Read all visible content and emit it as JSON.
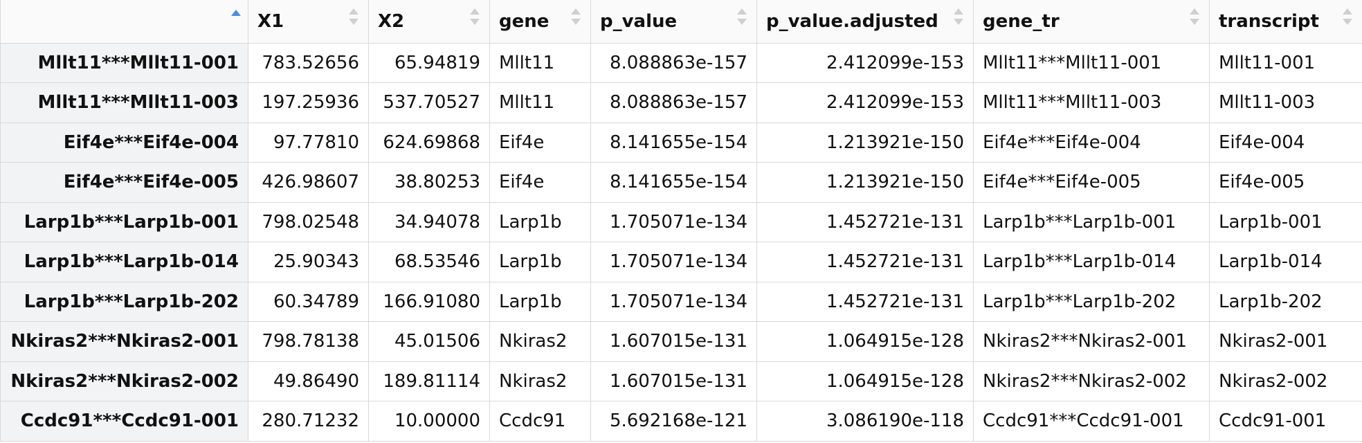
{
  "table": {
    "columns": [
      {
        "label": "",
        "sort": "ascending"
      },
      {
        "label": "X1"
      },
      {
        "label": "X2"
      },
      {
        "label": "gene"
      },
      {
        "label": "p_value"
      },
      {
        "label": "p_value.adjusted"
      },
      {
        "label": "gene_tr"
      },
      {
        "label": "transcript"
      }
    ],
    "rows": [
      {
        "name": "Mllt11***Mllt11-001",
        "x1": "783.52656",
        "x2": "65.94819",
        "gene": "Mllt11",
        "p_value": "8.088863e-157",
        "p_adj": "2.412099e-153",
        "gene_tr": "Mllt11***Mllt11-001",
        "transcript": "Mllt11-001"
      },
      {
        "name": "Mllt11***Mllt11-003",
        "x1": "197.25936",
        "x2": "537.70527",
        "gene": "Mllt11",
        "p_value": "8.088863e-157",
        "p_adj": "2.412099e-153",
        "gene_tr": "Mllt11***Mllt11-003",
        "transcript": "Mllt11-003"
      },
      {
        "name": "Eif4e***Eif4e-004",
        "x1": "97.77810",
        "x2": "624.69868",
        "gene": "Eif4e",
        "p_value": "8.141655e-154",
        "p_adj": "1.213921e-150",
        "gene_tr": "Eif4e***Eif4e-004",
        "transcript": "Eif4e-004"
      },
      {
        "name": "Eif4e***Eif4e-005",
        "x1": "426.98607",
        "x2": "38.80253",
        "gene": "Eif4e",
        "p_value": "8.141655e-154",
        "p_adj": "1.213921e-150",
        "gene_tr": "Eif4e***Eif4e-005",
        "transcript": "Eif4e-005"
      },
      {
        "name": "Larp1b***Larp1b-001",
        "x1": "798.02548",
        "x2": "34.94078",
        "gene": "Larp1b",
        "p_value": "1.705071e-134",
        "p_adj": "1.452721e-131",
        "gene_tr": "Larp1b***Larp1b-001",
        "transcript": "Larp1b-001"
      },
      {
        "name": "Larp1b***Larp1b-014",
        "x1": "25.90343",
        "x2": "68.53546",
        "gene": "Larp1b",
        "p_value": "1.705071e-134",
        "p_adj": "1.452721e-131",
        "gene_tr": "Larp1b***Larp1b-014",
        "transcript": "Larp1b-014"
      },
      {
        "name": "Larp1b***Larp1b-202",
        "x1": "60.34789",
        "x2": "166.91080",
        "gene": "Larp1b",
        "p_value": "1.705071e-134",
        "p_adj": "1.452721e-131",
        "gene_tr": "Larp1b***Larp1b-202",
        "transcript": "Larp1b-202"
      },
      {
        "name": "Nkiras2***Nkiras2-001",
        "x1": "798.78138",
        "x2": "45.01506",
        "gene": "Nkiras2",
        "p_value": "1.607015e-131",
        "p_adj": "1.064915e-128",
        "gene_tr": "Nkiras2***Nkiras2-001",
        "transcript": "Nkiras2-001"
      },
      {
        "name": "Nkiras2***Nkiras2-002",
        "x1": "49.86490",
        "x2": "189.81114",
        "gene": "Nkiras2",
        "p_value": "1.607015e-131",
        "p_adj": "1.064915e-128",
        "gene_tr": "Nkiras2***Nkiras2-002",
        "transcript": "Nkiras2-002"
      },
      {
        "name": "Ccdc91***Ccdc91-001",
        "x1": "280.71232",
        "x2": "10.00000",
        "gene": "Ccdc91",
        "p_value": "5.692168e-121",
        "p_adj": "3.086190e-118",
        "gene_tr": "Ccdc91***Ccdc91-001",
        "transcript": "Ccdc91-001"
      }
    ]
  },
  "colors": {
    "sort_active": "#4a8fe0",
    "sort_inactive": "#cfcfcf",
    "rowname_bg": "#f2f3f5",
    "grid": "#d9d9d9"
  }
}
